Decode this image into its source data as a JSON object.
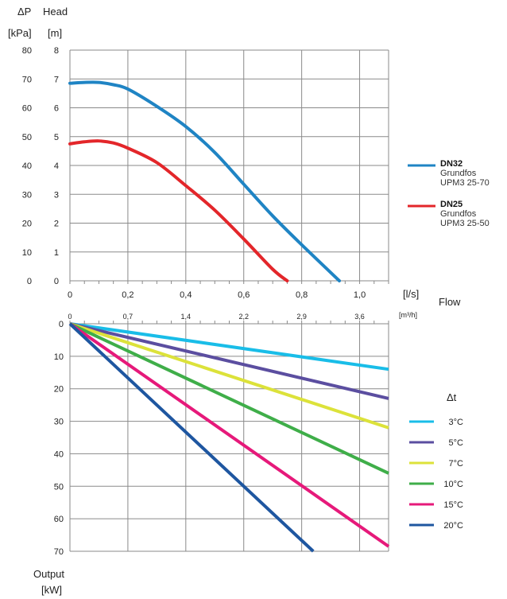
{
  "chart_data": [
    {
      "type": "line",
      "title": "",
      "ylabel_pressure": "ΔP",
      "ylabel_pressure_unit": "[kPa]",
      "ylabel_head": "Head",
      "ylabel_head_unit": "[m]",
      "xlabel": "Flow",
      "xunit_ls": "[l/s]",
      "xunit_m3h": "[m³/h]",
      "xlim": [
        0,
        1.1
      ],
      "ylim": [
        0,
        8
      ],
      "grid": true,
      "x_ticks_ls": [
        "0",
        "0,2",
        "0,4",
        "0,6",
        "0,8",
        "1,0"
      ],
      "x_ticks_m3h": [
        "0",
        "0,7",
        "1,4",
        "2,2",
        "2,9",
        "3,6"
      ],
      "y_ticks_kpa": [
        "0",
        "10",
        "20",
        "30",
        "40",
        "50",
        "60",
        "70",
        "80"
      ],
      "y_ticks_m": [
        "0",
        "1",
        "2",
        "3",
        "4",
        "5",
        "6",
        "7",
        "8"
      ],
      "series": [
        {
          "name": "DN32",
          "subtitle": [
            "Grundfos",
            "UPM3 25-70"
          ],
          "color": "#1f84c4",
          "points": [
            [
              0,
              6.85
            ],
            [
              0.05,
              6.88
            ],
            [
              0.1,
              6.88
            ],
            [
              0.15,
              6.8
            ],
            [
              0.2,
              6.65
            ],
            [
              0.3,
              6.05
            ],
            [
              0.4,
              5.35
            ],
            [
              0.5,
              4.45
            ],
            [
              0.6,
              3.35
            ],
            [
              0.7,
              2.25
            ],
            [
              0.8,
              1.25
            ],
            [
              0.93,
              0
            ]
          ]
        },
        {
          "name": "DN25",
          "subtitle": [
            "Grundfos",
            "UPM3 25-50"
          ],
          "color": "#e3262a",
          "points": [
            [
              0,
              4.75
            ],
            [
              0.05,
              4.82
            ],
            [
              0.1,
              4.85
            ],
            [
              0.15,
              4.78
            ],
            [
              0.2,
              4.6
            ],
            [
              0.3,
              4.1
            ],
            [
              0.4,
              3.3
            ],
            [
              0.5,
              2.45
            ],
            [
              0.6,
              1.45
            ],
            [
              0.7,
              0.4
            ],
            [
              0.75,
              0
            ]
          ]
        }
      ]
    },
    {
      "type": "line",
      "title": "",
      "ylabel": "Output",
      "yunit": "[kW]",
      "legend_title": "Δt",
      "xlim": [
        0,
        1.1
      ],
      "ylim": [
        0,
        70
      ],
      "y_inverted": true,
      "grid": true,
      "y_ticks": [
        "0",
        "10",
        "20",
        "30",
        "40",
        "50",
        "60",
        "70"
      ],
      "series": [
        {
          "name": "3°C",
          "color": "#19bde8",
          "points": [
            [
              0,
              0
            ],
            [
              1.1,
              14
            ]
          ]
        },
        {
          "name": "5°C",
          "color": "#5b4ea0",
          "points": [
            [
              0,
              0
            ],
            [
              1.1,
              23
            ]
          ]
        },
        {
          "name": "7°C",
          "color": "#dce23a",
          "points": [
            [
              0,
              0
            ],
            [
              1.1,
              32
            ]
          ]
        },
        {
          "name": "10°C",
          "color": "#3fae49",
          "points": [
            [
              0,
              0
            ],
            [
              1.1,
              46
            ]
          ]
        },
        {
          "name": "15°C",
          "color": "#e6197a",
          "points": [
            [
              0,
              0
            ],
            [
              1.1,
              68.5
            ]
          ]
        },
        {
          "name": "20°C",
          "color": "#1e56a0",
          "points": [
            [
              0,
              0
            ],
            [
              0.84,
              70
            ]
          ]
        }
      ]
    }
  ]
}
